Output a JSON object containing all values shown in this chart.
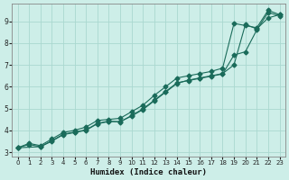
{
  "xlabel": "Humidex (Indice chaleur)",
  "bg_color": "#cdeee8",
  "grid_color": "#aad8d0",
  "line_color": "#1a6b5a",
  "xlim": [
    -0.5,
    23.5
  ],
  "ylim": [
    2.8,
    9.8
  ],
  "x_ticks": [
    0,
    1,
    2,
    3,
    4,
    5,
    6,
    7,
    8,
    9,
    10,
    11,
    12,
    13,
    14,
    15,
    16,
    17,
    18,
    19,
    20,
    21,
    22,
    23
  ],
  "y_ticks": [
    3,
    4,
    5,
    6,
    7,
    8,
    9
  ],
  "line1_x": [
    0,
    1,
    2,
    3,
    4,
    5,
    6,
    7,
    8,
    9,
    10,
    11,
    12,
    13,
    14,
    15,
    16,
    17,
    18,
    19,
    20,
    21,
    22,
    23
  ],
  "line1_y": [
    3.2,
    3.4,
    3.3,
    3.6,
    3.9,
    4.0,
    4.15,
    4.45,
    4.5,
    4.55,
    4.85,
    5.15,
    5.6,
    6.0,
    6.4,
    6.5,
    6.6,
    6.7,
    6.85,
    8.9,
    8.8,
    8.7,
    9.5,
    9.3
  ],
  "line2_x": [
    0,
    2,
    3,
    4,
    5,
    6,
    7,
    8,
    9,
    10,
    11,
    12,
    13,
    14,
    15,
    16,
    17,
    18,
    19,
    20,
    21,
    22,
    23
  ],
  "line2_y": [
    3.2,
    3.25,
    3.5,
    3.8,
    3.9,
    4.0,
    4.3,
    4.4,
    4.4,
    4.65,
    4.95,
    5.35,
    5.75,
    6.15,
    6.3,
    6.4,
    6.5,
    6.6,
    7.0,
    8.85,
    8.65,
    9.15,
    9.3
  ],
  "line3_x": [
    0,
    1,
    2,
    3,
    4,
    5,
    6,
    7,
    8,
    9,
    10,
    11,
    12,
    13,
    14,
    15,
    16,
    17,
    18,
    19,
    20,
    21,
    22,
    23
  ],
  "line3_y": [
    3.2,
    3.35,
    3.25,
    3.52,
    3.82,
    3.92,
    4.02,
    4.32,
    4.42,
    4.38,
    4.68,
    4.98,
    5.38,
    5.78,
    6.18,
    6.28,
    6.38,
    6.48,
    6.58,
    7.45,
    7.6,
    8.6,
    9.4,
    9.25
  ],
  "marker": "D",
  "markersize": 2.5,
  "linewidth": 0.8
}
